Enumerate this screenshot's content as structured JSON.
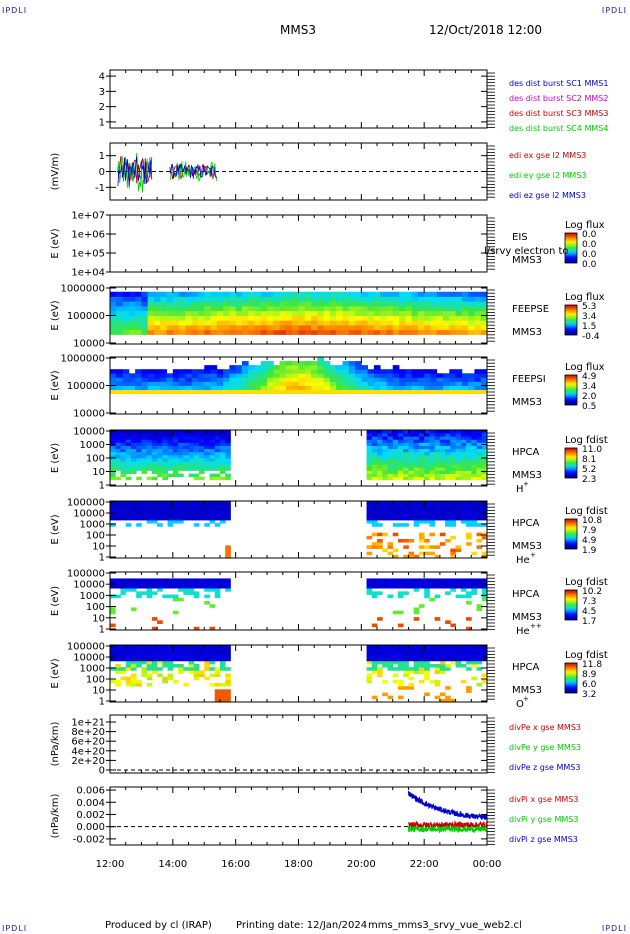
{
  "corner_tag": "IPDLI",
  "header": {
    "spacecraft": "MMS3",
    "datetime": "12/Oct/2018 12:00"
  },
  "footer": {
    "producer": "Produced by cl (IRAP)",
    "print_date": "Printing date: 12/Jan/2024",
    "script": "mms_mms3_srvy_vue_web2.cl"
  },
  "colors": {
    "blue": "#0000cc",
    "magenta": "#cc00cc",
    "red": "#cc0000",
    "green": "#00cc00"
  },
  "chart_data": {
    "type": "multi-panel",
    "x_tick_labels": [
      "12:00",
      "14:00",
      "16:00",
      "18:00",
      "20:00",
      "22:00",
      "00:00"
    ],
    "xlim_hours": [
      12,
      24
    ],
    "panels": [
      {
        "id": "dist",
        "ylabel": "",
        "yticks": [
          "1",
          "2",
          "3",
          "4"
        ],
        "ylim": [
          0.6,
          4.4
        ],
        "legend": [
          {
            "text": "des dist burst SC1 MMS1",
            "color": "blue"
          },
          {
            "text": "des dist burst SC2 MMS2",
            "color": "magenta"
          },
          {
            "text": "des dist burst SC3 MMS3",
            "color": "red"
          },
          {
            "text": "des dist burst SC4 MMS4",
            "color": "green"
          }
        ]
      },
      {
        "id": "edi",
        "ylabel": "(mV/m)",
        "yticks": [
          "-1",
          "0",
          "1"
        ],
        "ylim": [
          -1.8,
          1.8
        ],
        "zero_line": true,
        "legend": [
          {
            "text": "edi ex gse l2 MMS3",
            "color": "red"
          },
          {
            "text": "edi ey gse l2 MMS3",
            "color": "green"
          },
          {
            "text": "edi ez gse l2 MMS3",
            "color": "blue"
          }
        ],
        "data_intervals_hours": [
          [
            12.25,
            13.35
          ],
          [
            13.9,
            15.4
          ]
        ]
      },
      {
        "id": "eis",
        "ylabel": "E (eV)",
        "yticks": [
          "1e+04",
          "1e+05",
          "1e+06",
          "1e+07"
        ],
        "labels": [
          "EIS",
          "MMS3"
        ],
        "overlay_label": "l/srvy electron to",
        "colorbar": {
          "title": "Log flux",
          "ticks": [
            "0.0",
            "0.0",
            "0.0",
            "0.0"
          ]
        }
      },
      {
        "id": "feepse",
        "ylabel": "E (eV)",
        "yticks": [
          "10000",
          "100000",
          "1000000"
        ],
        "labels": [
          "FEEPSE",
          "MMS3"
        ],
        "colorbar": {
          "title": "Log flux",
          "ticks": [
            "5.3",
            "3.4",
            "1.5",
            "-0.4"
          ]
        }
      },
      {
        "id": "feepsi",
        "ylabel": "E (eV)",
        "yticks": [
          "10000",
          "100000",
          "1000000"
        ],
        "labels": [
          "FEEPSI",
          "MMS3"
        ],
        "colorbar": {
          "title": "Log flux",
          "ticks": [
            "4.9",
            "3.4",
            "2.0",
            "0.5"
          ]
        }
      },
      {
        "id": "hpca_h",
        "ylabel": "E (eV)",
        "yticks": [
          "1",
          "10",
          "100",
          "1000",
          "10000"
        ],
        "labels": [
          "HPCA",
          "MMS3"
        ],
        "species": "H",
        "charge": "+",
        "colorbar": {
          "title": "Log fdist",
          "ticks": [
            "11.0",
            "8.1",
            "5.2",
            "2.3"
          ]
        },
        "data_intervals_hours": [
          [
            12,
            15.9
          ],
          [
            20.1,
            24
          ]
        ]
      },
      {
        "id": "hpca_he1",
        "ylabel": "E (eV)",
        "yticks": [
          "1",
          "10",
          "100",
          "1000",
          "10000",
          "100000"
        ],
        "labels": [
          "HPCA",
          "MMS3"
        ],
        "species": "He",
        "charge": "+",
        "colorbar": {
          "title": "Log fdist",
          "ticks": [
            "10.8",
            "7.9",
            "4.9",
            "1.9"
          ]
        },
        "data_intervals_hours": [
          [
            12,
            15.9
          ],
          [
            20.1,
            24
          ]
        ]
      },
      {
        "id": "hpca_he2",
        "ylabel": "E (eV)",
        "yticks": [
          "1",
          "10",
          "100",
          "1000",
          "10000",
          "100000"
        ],
        "labels": [
          "HPCA",
          "MMS3"
        ],
        "species": "He",
        "charge": "++",
        "colorbar": {
          "title": "Log fdist",
          "ticks": [
            "10.2",
            "7.3",
            "4.5",
            "1.7"
          ]
        },
        "data_intervals_hours": [
          [
            12,
            15.9
          ],
          [
            20.1,
            24
          ]
        ]
      },
      {
        "id": "hpca_o",
        "ylabel": "E (eV)",
        "yticks": [
          "1",
          "10",
          "100",
          "1000",
          "10000",
          "100000"
        ],
        "labels": [
          "HPCA",
          "MMS3"
        ],
        "species": "O",
        "charge": "+",
        "colorbar": {
          "title": "Log fdist",
          "ticks": [
            "11.8",
            "8.9",
            "6.0",
            "3.2"
          ]
        },
        "data_intervals_hours": [
          [
            12,
            15.9
          ],
          [
            20.1,
            24
          ]
        ]
      },
      {
        "id": "divpe",
        "ylabel": "(nPa/km)",
        "yticks": [
          "0",
          "2e+20",
          "4e+20",
          "6e+20",
          "8e+20",
          "1e+21"
        ],
        "zero_line": true,
        "legend": [
          {
            "text": "divPe x gse MMS3",
            "color": "red"
          },
          {
            "text": "divPe y gse MMS3",
            "color": "green"
          },
          {
            "text": "divPe z gse MMS3",
            "color": "blue"
          }
        ]
      },
      {
        "id": "divpi",
        "ylabel": "(nPa/km)",
        "yticks": [
          "-0.002",
          "0.000",
          "0.002",
          "0.004",
          "0.006"
        ],
        "ylim": [
          -0.003,
          0.0065
        ],
        "zero_line": true,
        "legend": [
          {
            "text": "divPi x gse MMS3",
            "color": "red"
          },
          {
            "text": "divPi y gse MMS3",
            "color": "green"
          },
          {
            "text": "divPi z gse MMS3",
            "color": "blue"
          }
        ],
        "data_start_hours": 21.5
      }
    ]
  }
}
